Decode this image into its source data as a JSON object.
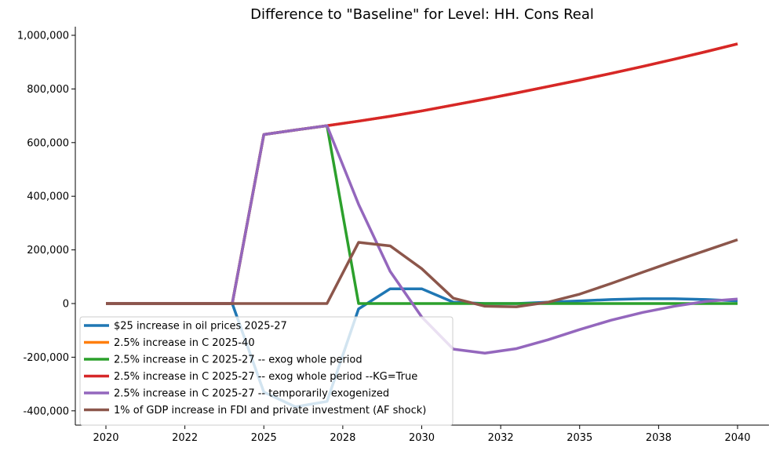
{
  "chart_data": {
    "type": "line",
    "title": "Difference to \"Baseline\" for Level: HH. Cons Real",
    "xlabel": "",
    "ylabel": "",
    "x": [
      2020,
      2021,
      2022,
      2023,
      2024,
      2025,
      2026,
      2027,
      2028,
      2029,
      2030,
      2031,
      2032,
      2033,
      2034,
      2035,
      2036,
      2037,
      2038,
      2039,
      2040
    ],
    "xlim": [
      2020,
      2040
    ],
    "ylim": [
      -400000,
      1000000
    ],
    "x_ticks": [
      2020,
      2022.5,
      2025,
      2027.5,
      2030,
      2032.5,
      2035,
      2037.5,
      2040
    ],
    "x_tick_labels": [
      "2020",
      "2022",
      "2025",
      "2028",
      "2030",
      "2032",
      "2035",
      "2038",
      "2040"
    ],
    "y_ticks": [
      -400000,
      -200000,
      0,
      200000,
      400000,
      600000,
      800000,
      1000000
    ],
    "y_tick_labels": [
      "-400,000",
      "-200,000",
      "0",
      "200,000",
      "400,000",
      "600,000",
      "800,000",
      "1,000,000"
    ],
    "grid": false,
    "legend_position": "lower-left",
    "series": [
      {
        "name": "$25 increase in oil prices 2025-27",
        "color": "#1f77b4",
        "values": [
          0,
          0,
          0,
          0,
          0,
          -330000,
          -385000,
          -365000,
          -20000,
          55000,
          55000,
          5000,
          0,
          0,
          5000,
          10000,
          15000,
          18000,
          18000,
          15000,
          10000
        ]
      },
      {
        "name": "2.5% increase in C 2025-40",
        "color": "#ff7f0e",
        "values": [
          0,
          0,
          0,
          0,
          0,
          630000,
          647000,
          663000,
          680000,
          698000,
          718000,
          740000,
          762000,
          785000,
          809000,
          833000,
          858000,
          884000,
          911000,
          939000,
          968000
        ]
      },
      {
        "name": "2.5% increase in C 2025-27 -- exog whole period",
        "color": "#2ca02c",
        "values": [
          0,
          0,
          0,
          0,
          0,
          630000,
          647000,
          663000,
          0,
          0,
          0,
          0,
          0,
          0,
          0,
          0,
          0,
          0,
          0,
          0,
          0
        ]
      },
      {
        "name": "2.5% increase in C 2025-27 -- exog whole period --KG=True",
        "color": "#d62728",
        "values": [
          0,
          0,
          0,
          0,
          0,
          630000,
          647000,
          663000,
          680000,
          698000,
          718000,
          740000,
          762000,
          785000,
          809000,
          833000,
          858000,
          884000,
          911000,
          939000,
          968000
        ]
      },
      {
        "name": "2.5% increase in C 2025-27 -- temporarily exogenized",
        "color": "#9467bd",
        "values": [
          0,
          0,
          0,
          0,
          0,
          630000,
          647000,
          663000,
          370000,
          120000,
          -50000,
          -170000,
          -185000,
          -168000,
          -135000,
          -97000,
          -62000,
          -33000,
          -10000,
          8000,
          17000
        ]
      },
      {
        "name": "1% of GDP increase in FDI and private investment (AF shock)",
        "color": "#8c564b",
        "values": [
          0,
          0,
          0,
          0,
          0,
          0,
          0,
          0,
          228000,
          215000,
          130000,
          20000,
          -10000,
          -12000,
          5000,
          35000,
          75000,
          117000,
          158000,
          198000,
          238000
        ]
      }
    ]
  }
}
